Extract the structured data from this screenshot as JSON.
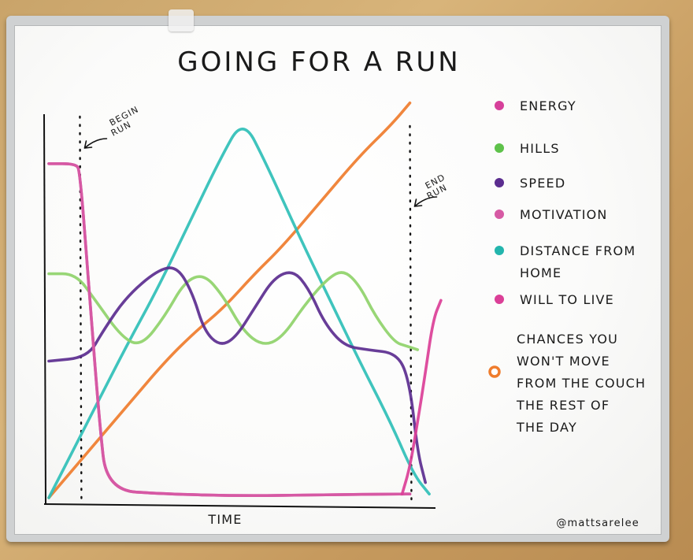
{
  "chart_data": {
    "type": "line",
    "title": "GOING FOR A RUN",
    "xlabel": "TIME",
    "ylabel": "",
    "xlim": [
      0,
      100
    ],
    "ylim": [
      0,
      100
    ],
    "annotations": {
      "begin": "BEGIN RUN",
      "end": "END RUN",
      "begin_x": 8,
      "end_x": 93
    },
    "credit": "@mattsarelee",
    "series": [
      {
        "name": "ENERGY",
        "color": "#d6409a",
        "points": [
          [
            0,
            88
          ],
          [
            7,
            88
          ],
          [
            8,
            86
          ],
          [
            10,
            60
          ],
          [
            13,
            20
          ],
          [
            15,
            2
          ],
          [
            30,
            1
          ],
          [
            50,
            0.5
          ],
          [
            70,
            0.8
          ],
          [
            91,
            1
          ],
          [
            93,
            1
          ]
        ]
      },
      {
        "name": "HILLS",
        "color": "#8fd36a",
        "points": [
          [
            0,
            59
          ],
          [
            7,
            59
          ],
          [
            12,
            52
          ],
          [
            19,
            42
          ],
          [
            24,
            40
          ],
          [
            30,
            48
          ],
          [
            35,
            57
          ],
          [
            40,
            59
          ],
          [
            45,
            53
          ],
          [
            50,
            44
          ],
          [
            55,
            40
          ],
          [
            60,
            42
          ],
          [
            66,
            51
          ],
          [
            72,
            58
          ],
          [
            76,
            60
          ],
          [
            80,
            56
          ],
          [
            84,
            48
          ],
          [
            89,
            41
          ],
          [
            92,
            40
          ],
          [
            95,
            39
          ]
        ]
      },
      {
        "name": "SPEED",
        "color": "#5b2d8f",
        "points": [
          [
            0,
            36
          ],
          [
            10,
            37
          ],
          [
            14,
            44
          ],
          [
            20,
            53
          ],
          [
            28,
            60
          ],
          [
            33,
            61
          ],
          [
            37,
            54
          ],
          [
            40,
            44
          ],
          [
            44,
            40
          ],
          [
            48,
            42
          ],
          [
            53,
            50
          ],
          [
            58,
            58
          ],
          [
            63,
            60
          ],
          [
            67,
            55
          ],
          [
            71,
            46
          ],
          [
            76,
            40
          ],
          [
            82,
            39
          ],
          [
            90,
            38
          ],
          [
            93,
            30
          ],
          [
            95,
            12
          ],
          [
            97,
            4
          ]
        ]
      },
      {
        "name": "MOTIVATION",
        "color": "#d65aa4",
        "points": [
          [
            0,
            88
          ],
          [
            7,
            88
          ],
          [
            8,
            86
          ],
          [
            10,
            60
          ],
          [
            13,
            20
          ],
          [
            15,
            2
          ],
          [
            30,
            1
          ],
          [
            50,
            0.5
          ],
          [
            70,
            0.8
          ],
          [
            91,
            1
          ],
          [
            93,
            1
          ]
        ]
      },
      {
        "name": "DISTANCE FROM HOME",
        "color": "#2fbfb7",
        "points": [
          [
            0,
            0
          ],
          [
            12,
            24
          ],
          [
            20,
            40
          ],
          [
            28,
            55
          ],
          [
            36,
            72
          ],
          [
            44,
            89
          ],
          [
            50,
            100
          ],
          [
            56,
            88
          ],
          [
            64,
            70
          ],
          [
            72,
            53
          ],
          [
            80,
            36
          ],
          [
            88,
            20
          ],
          [
            94,
            6
          ],
          [
            98,
            1
          ]
        ]
      },
      {
        "name": "WILL TO LIVE",
        "color": "#db3f97",
        "points": [
          [
            91,
            1
          ],
          [
            93,
            8
          ],
          [
            95,
            20
          ],
          [
            97,
            33
          ],
          [
            99,
            47
          ],
          [
            101,
            52
          ]
        ]
      },
      {
        "name": "CHANCES YOU WON'T MOVE FROM THE COUCH THE REST OF THE DAY",
        "color": "#ef7c2c",
        "points": [
          [
            0,
            0
          ],
          [
            10,
            12
          ],
          [
            20,
            24
          ],
          [
            30,
            36
          ],
          [
            38,
            44
          ],
          [
            45,
            50
          ],
          [
            53,
            59
          ],
          [
            60,
            66
          ],
          [
            70,
            78
          ],
          [
            80,
            90
          ],
          [
            88,
            98
          ],
          [
            93,
            104
          ]
        ]
      }
    ],
    "legend": {
      "position": "right",
      "items": [
        {
          "lines": [
            "ENERGY"
          ],
          "color": "#d6409a"
        },
        {
          "lines": [
            "HILLS"
          ],
          "color": "#5ec24a"
        },
        {
          "lines": [
            "SPEED"
          ],
          "color": "#5b2d8f"
        },
        {
          "lines": [
            "MOTIVATION"
          ],
          "color": "#d65aa4"
        },
        {
          "lines": [
            "DISTANCE FROM",
            "HOME"
          ],
          "color": "#23b5ad"
        },
        {
          "lines": [
            "WILL TO LIVE"
          ],
          "color": "#db3f97"
        },
        {
          "lines": [
            "CHANCES YOU",
            "WON'T MOVE",
            "FROM THE COUCH",
            "THE REST OF",
            "THE DAY"
          ],
          "color": "#ef7c2c"
        }
      ]
    }
  }
}
